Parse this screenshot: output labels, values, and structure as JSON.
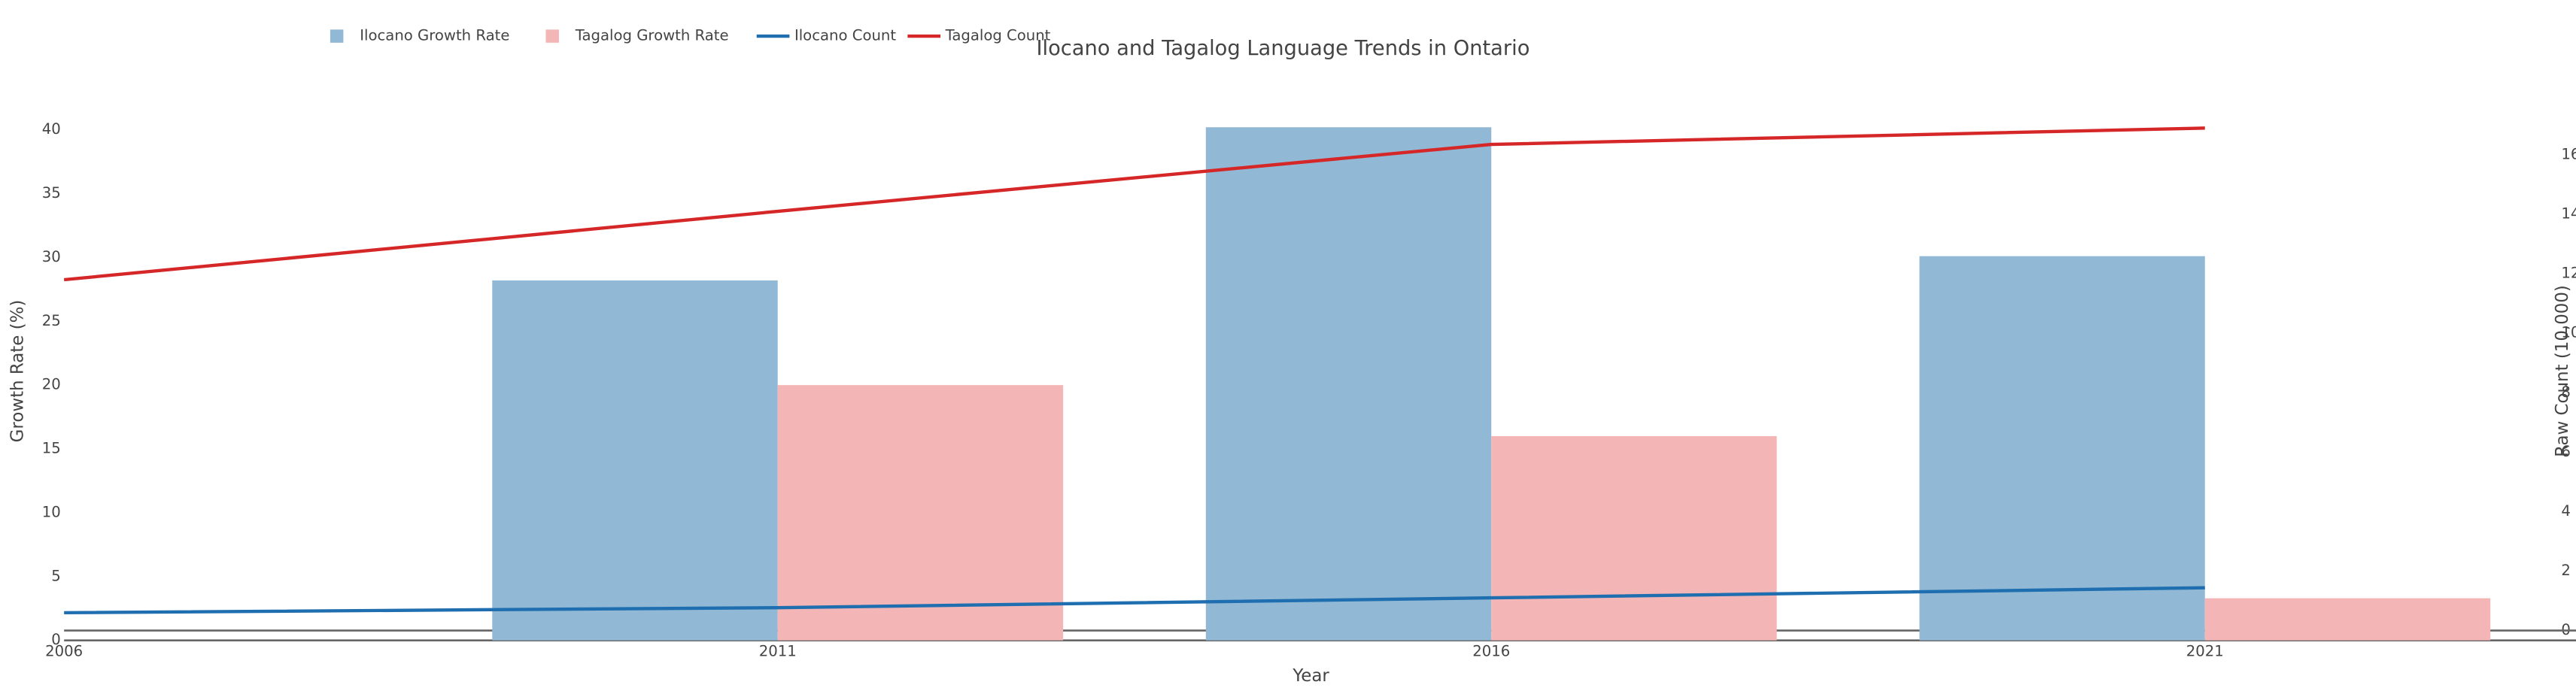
{
  "chart_data": {
    "type": "combo",
    "title": "Ilocano and Tagalog Language Trends in Ontario",
    "x_label": "Year",
    "y_label": "Growth Rate (%)",
    "y2_label": "Raw Count (10,000)",
    "x": [
      2006,
      2011,
      2016,
      2021
    ],
    "xlim": [
      2006,
      2023.6
    ],
    "xticks": [
      2006,
      2011,
      2016,
      2021
    ],
    "ylim": [
      0,
      42
    ],
    "yticks": [
      0,
      5,
      10,
      15,
      20,
      25,
      30,
      35,
      40
    ],
    "y2lim": [
      -0.33,
      17.7
    ],
    "y2ticks": [
      0,
      2,
      4,
      6,
      8,
      10,
      12,
      14,
      16
    ],
    "series": [
      {
        "name": "Ilocano Growth Rate",
        "type": "bar",
        "color": "#91b8d5",
        "values": [
          null,
          28.2,
          40.2,
          30.1
        ]
      },
      {
        "name": "Tagalog Growth Rate",
        "type": "bar",
        "color": "#f4b5b6",
        "values": [
          null,
          20,
          16,
          3.3
        ]
      },
      {
        "name": "Ilocano Count",
        "type": "line",
        "axis": "y2",
        "color": "#1f6fb0",
        "values": [
          0.6,
          0.77,
          1.1,
          1.44
        ]
      },
      {
        "name": "Tagalog Count",
        "type": "line",
        "axis": "y2",
        "color": "#d62728",
        "values": [
          11.8,
          14.1,
          16.35,
          16.9
        ]
      }
    ]
  }
}
